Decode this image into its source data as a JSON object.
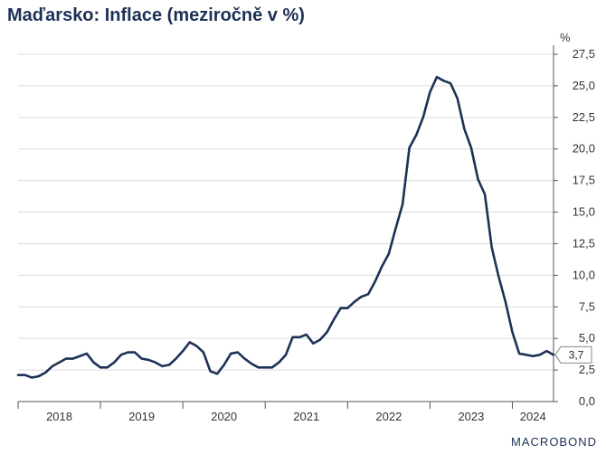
{
  "title": "Maďarsko: Inflace (meziročně v %)",
  "logo": "MACROBOND",
  "chart_data": {
    "type": "line",
    "title": "Maďarsko: Inflace (meziročně v %)",
    "unit": "%",
    "xlabel": "",
    "ylabel": "",
    "ylim": [
      0,
      27.5
    ],
    "y_ticks": [
      "0,0",
      "2,5",
      "5,0",
      "7,5",
      "10,0",
      "12,5",
      "15,0",
      "17,5",
      "20,0",
      "22,5",
      "25,0",
      "27,5"
    ],
    "x_ticks": [
      "2018",
      "2019",
      "2020",
      "2021",
      "2022",
      "2023",
      "2024"
    ],
    "last_value_label": "3,7",
    "grid": true,
    "line_color": "#1d3155",
    "series": [
      {
        "name": "",
        "color": "#1d3155",
        "values": [
          2.1,
          2.1,
          1.9,
          2.0,
          2.3,
          2.8,
          3.1,
          3.4,
          3.4,
          3.6,
          3.8,
          3.1,
          2.7,
          2.7,
          3.1,
          3.7,
          3.9,
          3.9,
          3.4,
          3.3,
          3.1,
          2.8,
          2.9,
          3.4,
          4.0,
          4.7,
          4.4,
          3.9,
          2.4,
          2.2,
          2.9,
          3.8,
          3.9,
          3.4,
          3.0,
          2.7,
          2.7,
          2.7,
          3.1,
          3.7,
          5.1,
          5.1,
          5.3,
          4.6,
          4.9,
          5.5,
          6.5,
          7.4,
          7.4,
          7.9,
          8.3,
          8.5,
          9.5,
          10.7,
          11.7,
          13.7,
          15.6,
          20.1,
          21.1,
          22.5,
          24.5,
          25.7,
          25.4,
          25.2,
          24.0,
          21.6,
          20.1,
          17.6,
          16.4,
          12.2,
          9.9,
          7.9,
          5.5,
          3.8,
          3.7,
          3.6,
          3.7,
          4.0,
          3.7
        ]
      }
    ]
  }
}
